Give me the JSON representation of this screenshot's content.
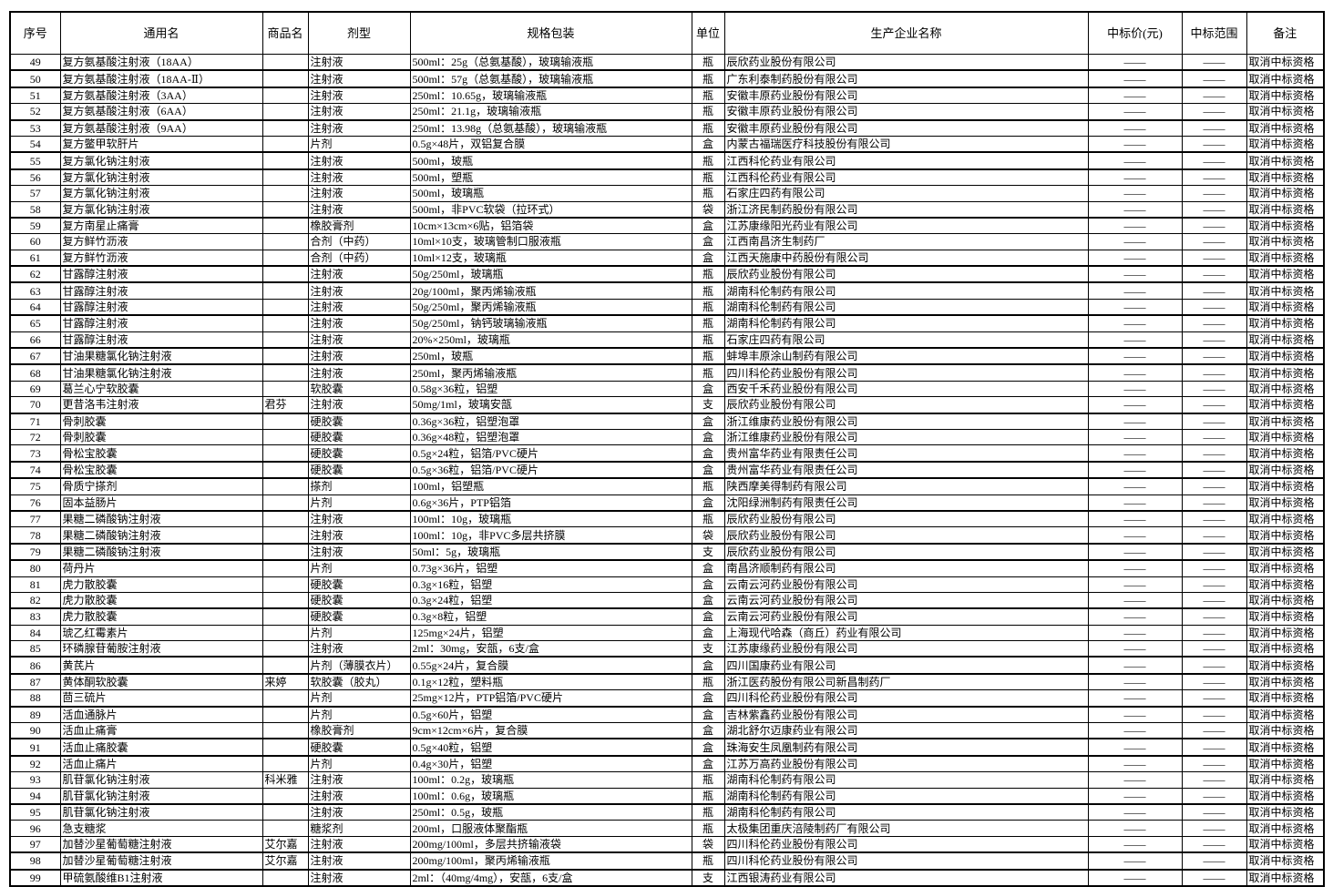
{
  "columns": [
    "序号",
    "通用名",
    "商品名",
    "剂型",
    "规格包装",
    "单位",
    "生产企业名称",
    "中标价(元)",
    "中标范围",
    "备注"
  ],
  "rows": [
    [
      "49",
      "复方氨基酸注射液（18AA）",
      "",
      "注射液",
      "500ml：25g（总氨基酸），玻璃输液瓶",
      "瓶",
      "辰欣药业股份有限公司",
      "——",
      "——",
      "取消中标资格"
    ],
    [
      "50",
      "复方氨基酸注射液（18AA-Ⅱ）",
      "",
      "注射液",
      "500ml：57g（总氨基酸），玻璃输液瓶",
      "瓶",
      "广东利泰制药股份有限公司",
      "——",
      "——",
      "取消中标资格"
    ],
    [
      "51",
      "复方氨基酸注射液（3AA）",
      "",
      "注射液",
      "250ml：10.65g，玻璃输液瓶",
      "瓶",
      "安徽丰原药业股份有限公司",
      "——",
      "——",
      "取消中标资格"
    ],
    [
      "52",
      "复方氨基酸注射液（6AA）",
      "",
      "注射液",
      "250ml：21.1g，玻璃输液瓶",
      "瓶",
      "安徽丰原药业股份有限公司",
      "——",
      "——",
      "取消中标资格"
    ],
    [
      "53",
      "复方氨基酸注射液（9AA）",
      "",
      "注射液",
      "250ml：13.98g（总氨基酸），玻璃输液瓶",
      "瓶",
      "安徽丰原药业股份有限公司",
      "——",
      "——",
      "取消中标资格"
    ],
    [
      "54",
      "复方鳖甲软肝片",
      "",
      "片剂",
      "0.5g×48片，双铝复合膜",
      "盒",
      "内蒙古福瑞医疗科技股份有限公司",
      "——",
      "——",
      "取消中标资格"
    ],
    [
      "55",
      "复方氯化钠注射液",
      "",
      "注射液",
      "500ml，玻瓶",
      "瓶",
      "江西科伦药业有限公司",
      "——",
      "——",
      "取消中标资格"
    ],
    [
      "56",
      "复方氯化钠注射液",
      "",
      "注射液",
      "500ml，塑瓶",
      "瓶",
      "江西科伦药业有限公司",
      "——",
      "——",
      "取消中标资格"
    ],
    [
      "57",
      "复方氯化钠注射液",
      "",
      "注射液",
      "500ml，玻璃瓶",
      "瓶",
      "石家庄四药有限公司",
      "——",
      "——",
      "取消中标资格"
    ],
    [
      "58",
      "复方氯化钠注射液",
      "",
      "注射液",
      "500ml，非PVC软袋（拉环式）",
      "袋",
      "浙江济民制药股份有限公司",
      "——",
      "——",
      "取消中标资格"
    ],
    [
      "59",
      "复方南星止痛膏",
      "",
      "橡胶膏剂",
      "10cm×13cm×6贴，铝箔袋",
      "盒",
      "江苏康缘阳光药业有限公司",
      "——",
      "——",
      "取消中标资格"
    ],
    [
      "60",
      "复方鲜竹沥液",
      "",
      "合剂（中药）",
      "10ml×10支，玻璃管制口服液瓶",
      "盒",
      "江西南昌济生制药厂",
      "——",
      "——",
      "取消中标资格"
    ],
    [
      "61",
      "复方鲜竹沥液",
      "",
      "合剂（中药）",
      "10ml×12支，玻璃瓶",
      "盒",
      "江西天施康中药股份有限公司",
      "——",
      "——",
      "取消中标资格"
    ],
    [
      "62",
      "甘露醇注射液",
      "",
      "注射液",
      "50g/250ml，玻璃瓶",
      "瓶",
      "辰欣药业股份有限公司",
      "——",
      "——",
      "取消中标资格"
    ],
    [
      "63",
      "甘露醇注射液",
      "",
      "注射液",
      "20g/100ml，聚丙烯输液瓶",
      "瓶",
      "湖南科伦制药有限公司",
      "——",
      "——",
      "取消中标资格"
    ],
    [
      "64",
      "甘露醇注射液",
      "",
      "注射液",
      "50g/250ml，聚丙烯输液瓶",
      "瓶",
      "湖南科伦制药有限公司",
      "——",
      "——",
      "取消中标资格"
    ],
    [
      "65",
      "甘露醇注射液",
      "",
      "注射液",
      "50g/250ml，钠钙玻璃输液瓶",
      "瓶",
      "湖南科伦制药有限公司",
      "——",
      "——",
      "取消中标资格"
    ],
    [
      "66",
      "甘露醇注射液",
      "",
      "注射液",
      "20%×250ml，玻璃瓶",
      "瓶",
      "石家庄四药有限公司",
      "——",
      "——",
      "取消中标资格"
    ],
    [
      "67",
      "甘油果糖氯化钠注射液",
      "",
      "注射液",
      "250ml，玻瓶",
      "瓶",
      "蚌埠丰原涂山制药有限公司",
      "——",
      "——",
      "取消中标资格"
    ],
    [
      "68",
      "甘油果糖氯化钠注射液",
      "",
      "注射液",
      "250ml，聚丙烯输液瓶",
      "瓶",
      "四川科伦药业股份有限公司",
      "——",
      "——",
      "取消中标资格"
    ],
    [
      "69",
      "葛兰心宁软胶囊",
      "",
      "软胶囊",
      "0.58g×36粒，铝塑",
      "盒",
      "西安千禾药业股份有限公司",
      "——",
      "——",
      "取消中标资格"
    ],
    [
      "70",
      "更昔洛韦注射液",
      "君芬",
      "注射液",
      "50mg/1ml，玻璃安瓿",
      "支",
      "辰欣药业股份有限公司",
      "——",
      "——",
      "取消中标资格"
    ],
    [
      "71",
      "骨刺胶囊",
      "",
      "硬胶囊",
      "0.36g×36粒，铝塑泡罩",
      "盒",
      "浙江维康药业股份有限公司",
      "——",
      "——",
      "取消中标资格"
    ],
    [
      "72",
      "骨刺胶囊",
      "",
      "硬胶囊",
      "0.36g×48粒，铝塑泡罩",
      "盒",
      "浙江维康药业股份有限公司",
      "——",
      "——",
      "取消中标资格"
    ],
    [
      "73",
      "骨松宝胶囊",
      "",
      "硬胶囊",
      "0.5g×24粒，铝箔/PVC硬片",
      "盒",
      "贵州富华药业有限责任公司",
      "——",
      "——",
      "取消中标资格"
    ],
    [
      "74",
      "骨松宝胶囊",
      "",
      "硬胶囊",
      "0.5g×36粒，铝箔/PVC硬片",
      "盒",
      "贵州富华药业有限责任公司",
      "——",
      "——",
      "取消中标资格"
    ],
    [
      "75",
      "骨质宁搽剂",
      "",
      "搽剂",
      "100ml，铝塑瓶",
      "瓶",
      "陕西摩美得制药有限公司",
      "——",
      "——",
      "取消中标资格"
    ],
    [
      "76",
      "固本益肠片",
      "",
      "片剂",
      "0.6g×36片，PTP铝箔",
      "盒",
      "沈阳绿洲制药有限责任公司",
      "——",
      "——",
      "取消中标资格"
    ],
    [
      "77",
      "果糖二磷酸钠注射液",
      "",
      "注射液",
      "100ml：10g，玻璃瓶",
      "瓶",
      "辰欣药业股份有限公司",
      "——",
      "——",
      "取消中标资格"
    ],
    [
      "78",
      "果糖二磷酸钠注射液",
      "",
      "注射液",
      "100ml：10g，非PVC多层共挤膜",
      "袋",
      "辰欣药业股份有限公司",
      "——",
      "——",
      "取消中标资格"
    ],
    [
      "79",
      "果糖二磷酸钠注射液",
      "",
      "注射液",
      "50ml：5g，玻璃瓶",
      "支",
      "辰欣药业股份有限公司",
      "——",
      "——",
      "取消中标资格"
    ],
    [
      "80",
      "荷丹片",
      "",
      "片剂",
      "0.73g×36片，铝塑",
      "盒",
      "南昌济顺制药有限公司",
      "——",
      "——",
      "取消中标资格"
    ],
    [
      "81",
      "虎力散胶囊",
      "",
      "硬胶囊",
      "0.3g×16粒，铝塑",
      "盒",
      "云南云河药业股份有限公司",
      "——",
      "——",
      "取消中标资格"
    ],
    [
      "82",
      "虎力散胶囊",
      "",
      "硬胶囊",
      "0.3g×24粒，铝塑",
      "盒",
      "云南云河药业股份有限公司",
      "——",
      "——",
      "取消中标资格"
    ],
    [
      "83",
      "虎力散胶囊",
      "",
      "硬胶囊",
      "0.3g×8粒，铝塑",
      "盒",
      "云南云河药业股份有限公司",
      "——",
      "——",
      "取消中标资格"
    ],
    [
      "84",
      "琥乙红霉素片",
      "",
      "片剂",
      "125mg×24片，铝塑",
      "盒",
      "上海现代哈森（商丘）药业有限公司",
      "——",
      "——",
      "取消中标资格"
    ],
    [
      "85",
      "环磷腺苷葡胺注射液",
      "",
      "注射液",
      "2ml：30mg，安瓿，6支/盒",
      "支",
      "江苏康缘药业股份有限公司",
      "——",
      "——",
      "取消中标资格"
    ],
    [
      "86",
      "黄芪片",
      "",
      "片剂（薄膜衣片）",
      "0.55g×24片，复合膜",
      "盒",
      "四川国康药业有限公司",
      "——",
      "——",
      "取消中标资格"
    ],
    [
      "87",
      "黄体酮软胶囊",
      "来婷",
      "软胶囊（胶丸）",
      "0.1g×12粒，塑料瓶",
      "瓶",
      "浙江医药股份有限公司新昌制药厂",
      "——",
      "——",
      "取消中标资格"
    ],
    [
      "88",
      "茴三硫片",
      "",
      "片剂",
      "25mg×12片，PTP铝箔/PVC硬片",
      "盒",
      "四川科伦药业股份有限公司",
      "——",
      "——",
      "取消中标资格"
    ],
    [
      "89",
      "活血通脉片",
      "",
      "片剂",
      "0.5g×60片，铝塑",
      "盒",
      "吉林紫鑫药业股份有限公司",
      "——",
      "——",
      "取消中标资格"
    ],
    [
      "90",
      "活血止痛膏",
      "",
      "橡胶膏剂",
      "9cm×12cm×6片，复合膜",
      "盒",
      "湖北舒尔迈康药业有限公司",
      "——",
      "——",
      "取消中标资格"
    ],
    [
      "91",
      "活血止痛胶囊",
      "",
      "硬胶囊",
      "0.5g×40粒，铝塑",
      "盒",
      "珠海安生凤凰制药有限公司",
      "——",
      "——",
      "取消中标资格"
    ],
    [
      "92",
      "活血止痛片",
      "",
      "片剂",
      "0.4g×30片，铝塑",
      "盒",
      "江苏万高药业股份有限公司",
      "——",
      "——",
      "取消中标资格"
    ],
    [
      "93",
      "肌苷氯化钠注射液",
      "科米雅",
      "注射液",
      "100ml：0.2g，玻璃瓶",
      "瓶",
      "湖南科伦制药有限公司",
      "——",
      "——",
      "取消中标资格"
    ],
    [
      "94",
      "肌苷氯化钠注射液",
      "",
      "注射液",
      "100ml：0.6g，玻璃瓶",
      "瓶",
      "湖南科伦制药有限公司",
      "——",
      "——",
      "取消中标资格"
    ],
    [
      "95",
      "肌苷氯化钠注射液",
      "",
      "注射液",
      "250ml：0.5g，玻瓶",
      "瓶",
      "湖南科伦制药有限公司",
      "——",
      "——",
      "取消中标资格"
    ],
    [
      "96",
      "急支糖浆",
      "",
      "糖浆剂",
      "200ml，口服液体聚酯瓶",
      "瓶",
      "太极集团重庆涪陵制药厂有限公司",
      "——",
      "——",
      "取消中标资格"
    ],
    [
      "97",
      "加替沙星葡萄糖注射液",
      "艾尔嘉",
      "注射液",
      "200mg/100ml，多层共挤输液袋",
      "袋",
      "四川科伦药业股份有限公司",
      "——",
      "——",
      "取消中标资格"
    ],
    [
      "98",
      "加替沙星葡萄糖注射液",
      "艾尔嘉",
      "注射液",
      "200mg/100ml，聚丙烯输液瓶",
      "瓶",
      "四川科伦药业股份有限公司",
      "——",
      "——",
      "取消中标资格"
    ],
    [
      "99",
      "甲硫氨酸维B1注射液",
      "",
      "注射液",
      "2ml：（40mg/4mg），安瓿，6支/盒",
      "支",
      "江西银涛药业有限公司",
      "——",
      "——",
      "取消中标资格"
    ]
  ]
}
